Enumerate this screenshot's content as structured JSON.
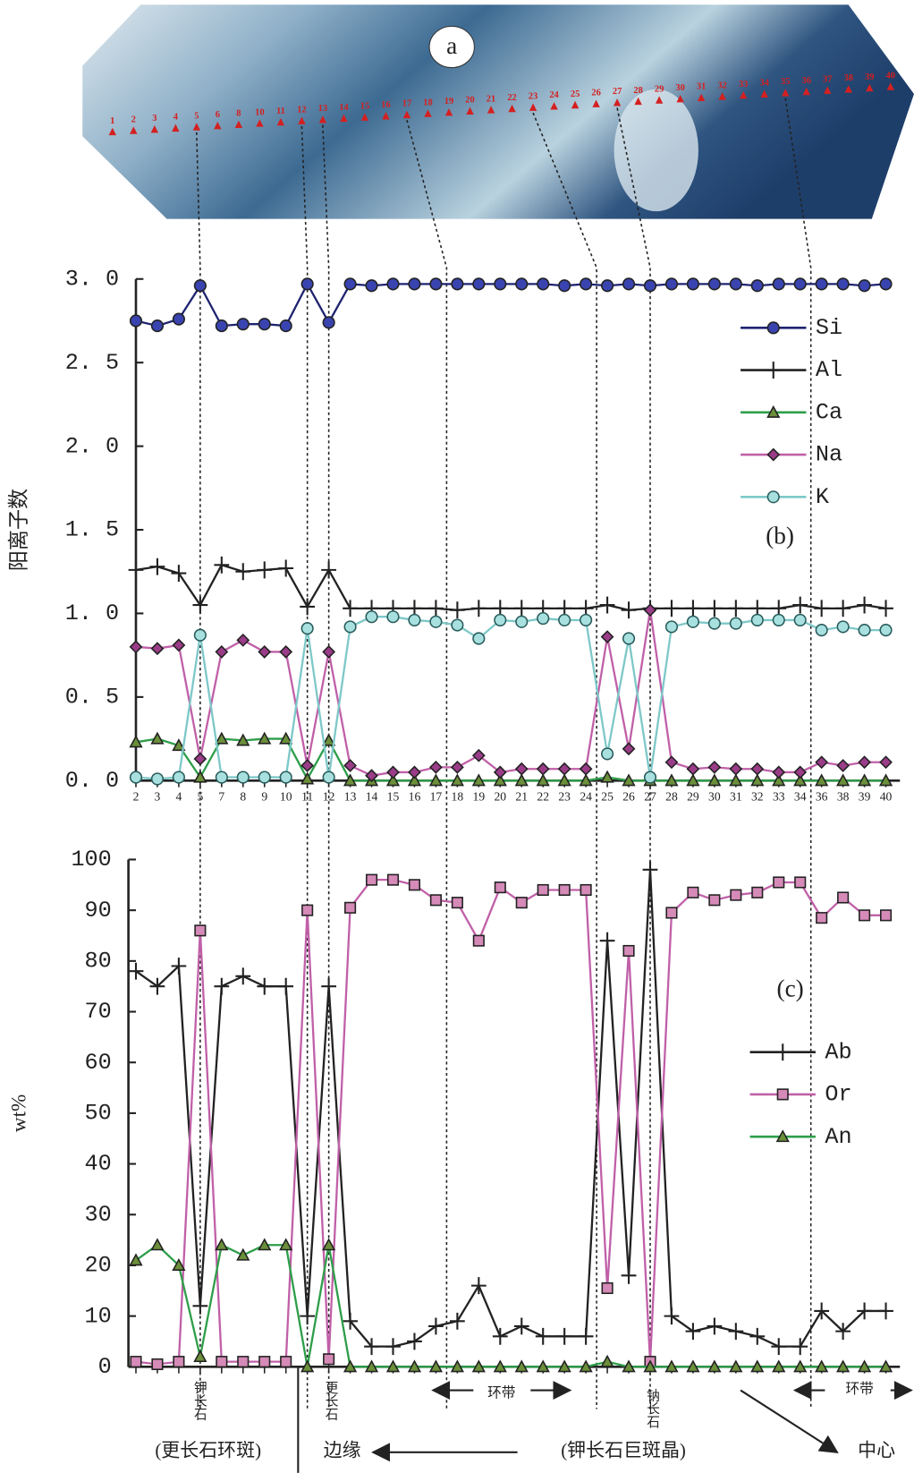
{
  "photo_label": "a",
  "photo_points": [
    1,
    2,
    3,
    4,
    5,
    6,
    8,
    10,
    11,
    12,
    13,
    14,
    15,
    16,
    17,
    18,
    19,
    20,
    21,
    22,
    23,
    24,
    25,
    26,
    27,
    28,
    29,
    30,
    31,
    32,
    33,
    34,
    35,
    36,
    37,
    38,
    39,
    40
  ],
  "chart_data": [
    {
      "type": "line",
      "panel_label": "(b)",
      "y_label": "阳离子数",
      "categories": [
        "2",
        "3",
        "4",
        "5",
        "7",
        "8",
        "9",
        "10",
        "11",
        "12",
        "13",
        "14",
        "15",
        "16",
        "17",
        "18",
        "19",
        "20",
        "21",
        "22",
        "23",
        "24",
        "25",
        "26",
        "27",
        "28",
        "29",
        "30",
        "31",
        "32",
        "33",
        "34",
        "36",
        "38",
        "39",
        "40"
      ],
      "ylim": [
        0,
        3
      ],
      "yticks": [
        {
          "value": 0,
          "label": "0. 0"
        },
        {
          "value": 0.5,
          "label": "0. 5"
        },
        {
          "value": 1,
          "label": "1. 0"
        },
        {
          "value": 1.5,
          "label": "1. 5"
        },
        {
          "value": 2,
          "label": "2. 0"
        },
        {
          "value": 2.5,
          "label": "2. 5"
        },
        {
          "value": 3,
          "label": "3. 0"
        }
      ],
      "series": [
        {
          "name": "Si",
          "color": "#1f2470",
          "marker": "circle",
          "fill": "#3a44b0",
          "values": [
            2.75,
            2.72,
            2.76,
            2.96,
            2.72,
            2.73,
            2.73,
            2.72,
            2.97,
            2.74,
            2.97,
            2.96,
            2.97,
            2.97,
            2.97,
            2.97,
            2.97,
            2.97,
            2.97,
            2.97,
            2.96,
            2.97,
            2.96,
            2.97,
            2.96,
            2.97,
            2.97,
            2.97,
            2.97,
            2.96,
            2.97,
            2.97,
            2.97,
            2.97,
            2.96,
            2.97
          ]
        },
        {
          "name": "Al",
          "color": "#222222",
          "marker": "plus",
          "fill": "#222222",
          "values": [
            1.26,
            1.28,
            1.24,
            1.05,
            1.29,
            1.25,
            1.26,
            1.27,
            1.04,
            1.26,
            1.03,
            1.03,
            1.03,
            1.03,
            1.03,
            1.02,
            1.03,
            1.03,
            1.03,
            1.03,
            1.03,
            1.03,
            1.05,
            1.02,
            1.03,
            1.03,
            1.03,
            1.03,
            1.03,
            1.03,
            1.03,
            1.05,
            1.03,
            1.03,
            1.05,
            1.03
          ]
        },
        {
          "name": "Ca",
          "color": "#2e9e4a",
          "marker": "triangle",
          "fill": "#6b8f3a",
          "values": [
            0.23,
            0.25,
            0.21,
            0.02,
            0.25,
            0.24,
            0.25,
            0.25,
            0.01,
            0.24,
            0,
            0,
            0,
            0,
            0,
            0,
            0,
            0,
            0,
            0,
            0,
            0,
            0.02,
            0,
            0,
            0,
            0,
            0,
            0,
            0,
            0,
            0,
            0,
            0,
            0,
            0
          ]
        },
        {
          "name": "Na",
          "color": "#c060a8",
          "marker": "diamond",
          "fill": "#9a3c88",
          "values": [
            0.8,
            0.79,
            0.81,
            0.13,
            0.77,
            0.84,
            0.77,
            0.77,
            0.09,
            0.77,
            0.09,
            0.03,
            0.05,
            0.05,
            0.08,
            0.08,
            0.15,
            0.05,
            0.07,
            0.07,
            0.07,
            0.07,
            0.86,
            0.19,
            1.02,
            0.11,
            0.07,
            0.08,
            0.07,
            0.07,
            0.05,
            0.05,
            0.11,
            0.09,
            0.11,
            0.11
          ]
        },
        {
          "name": "K",
          "color": "#7ec8c8",
          "marker": "circle",
          "fill": "#a8e0e0",
          "values": [
            0.02,
            0.01,
            0.02,
            0.87,
            0.02,
            0.02,
            0.02,
            0.02,
            0.91,
            0.02,
            0.92,
            0.98,
            0.98,
            0.96,
            0.95,
            0.93,
            0.85,
            0.96,
            0.95,
            0.97,
            0.96,
            0.96,
            0.16,
            0.85,
            0.02,
            0.92,
            0.95,
            0.94,
            0.94,
            0.96,
            0.96,
            0.96,
            0.9,
            0.92,
            0.9,
            0.9
          ]
        }
      ]
    },
    {
      "type": "line",
      "panel_label": "(c)",
      "y_label": "wt%",
      "ylim": [
        0,
        100
      ],
      "yticks": [
        0,
        10,
        20,
        30,
        40,
        50,
        60,
        70,
        80,
        90,
        100
      ],
      "series": [
        {
          "name": "Ab",
          "color": "#222222",
          "marker": "plus",
          "fill": "#222222",
          "values": [
            78,
            75,
            79,
            12,
            75,
            77,
            75,
            75,
            10,
            75,
            9,
            4,
            4,
            5,
            8,
            9,
            16,
            6,
            8,
            6,
            6,
            6,
            84,
            18,
            98,
            10,
            7,
            8,
            7,
            6,
            4,
            4,
            11,
            7,
            11,
            11
          ]
        },
        {
          "name": "Or",
          "color": "#c060a8",
          "marker": "square",
          "fill": "#d58ab8",
          "values": [
            1,
            0.5,
            1,
            86,
            1,
            1,
            1,
            1,
            90,
            1.5,
            90.5,
            96,
            96,
            95,
            92,
            91.5,
            84,
            94.5,
            91.5,
            94,
            94,
            94,
            15.5,
            82,
            1,
            89.5,
            93.5,
            92,
            93,
            93.5,
            95.5,
            95.5,
            88.5,
            92.5,
            89,
            89
          ]
        },
        {
          "name": "An",
          "color": "#2e9e4a",
          "marker": "triangle",
          "fill": "#6b8f3a",
          "values": [
            21,
            24,
            20,
            2,
            24,
            22,
            24,
            24,
            0,
            24,
            0,
            0,
            0,
            0,
            0,
            0,
            0,
            0,
            0,
            0,
            0,
            0,
            1,
            0,
            0,
            0,
            0,
            0,
            0,
            0,
            0,
            0,
            0,
            0,
            0,
            0
          ]
        }
      ],
      "annotations": [
        "钾长石",
        "更长石",
        "环带",
        "钠长石",
        "环带",
        "(更长石环斑)",
        "边缘",
        "(钾长石巨斑晶)",
        "中心"
      ]
    }
  ]
}
